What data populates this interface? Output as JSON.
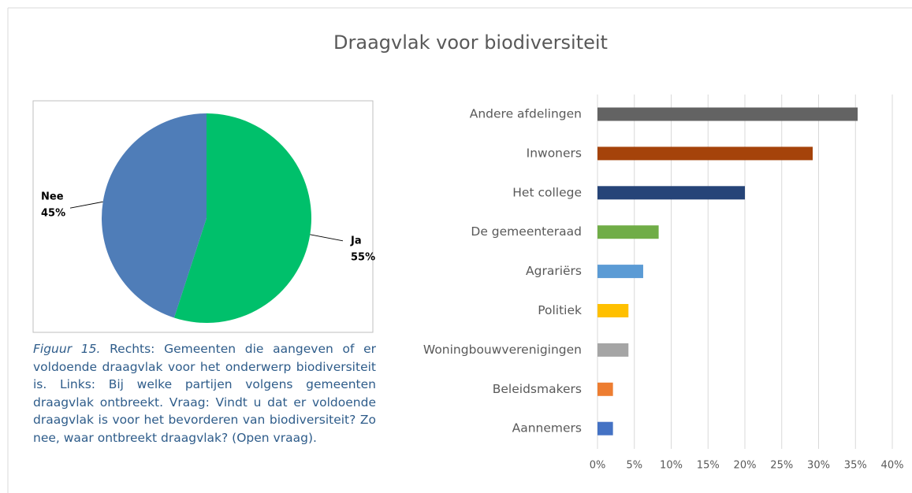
{
  "title": "Draagvlak voor biodiversiteit",
  "caption_label": "Figuur 15.",
  "caption": "Rechts: Gemeenten die aangeven of er voldoende draagvlak voor het onderwerp biodiversiteit is. Links: Bij welke partijen volgens gemeenten draagvlak ontbreekt. Vraag: Vindt u dat er voldoende draagvlak is voor het bevorderen van biodiversiteit? Zo nee, waar ontbreekt draagvlak? (Open vraag).",
  "chart_data": [
    {
      "type": "pie",
      "categories": [
        "Ja",
        "Nee"
      ],
      "values": [
        55,
        45
      ],
      "value_labels": [
        "55%",
        "45%"
      ],
      "colors": [
        "#00c06b",
        "#4f7db8"
      ]
    },
    {
      "type": "hbar",
      "categories": [
        "Andere afdelingen",
        "Inwoners",
        "Het college",
        "De gemeenteraad",
        "Agrariërs",
        "Politiek",
        "Woningbouwverenigingen",
        "Beleidsmakers",
        "Aannemers"
      ],
      "values": [
        35.3,
        29.2,
        20,
        8.3,
        6.2,
        4.2,
        4.2,
        2.1,
        2.1
      ],
      "colors": [
        "#636363",
        "#a5430a",
        "#264478",
        "#70ad47",
        "#5b9bd5",
        "#ffc000",
        "#a5a5a5",
        "#ed7d31",
        "#4472c4"
      ],
      "xlim": [
        0,
        40
      ],
      "xticks": [
        {
          "value": 0,
          "label": "0%"
        },
        {
          "value": 5,
          "label": "5%"
        },
        {
          "value": 10,
          "label": "10%"
        },
        {
          "value": 15,
          "label": "15%"
        },
        {
          "value": 20,
          "label": "20%"
        },
        {
          "value": 25,
          "label": "25%"
        },
        {
          "value": 30,
          "label": "30%"
        },
        {
          "value": 35,
          "label": "35%"
        },
        {
          "value": 40,
          "label": "40%"
        }
      ],
      "grid": true
    }
  ]
}
